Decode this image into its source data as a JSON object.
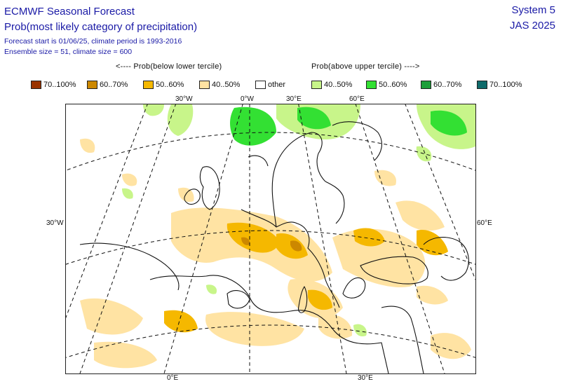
{
  "header": {
    "title": "ECMWF Seasonal Forecast",
    "subtitle": "Prob(most likely category of precipitation)",
    "meta_line1": "Forecast start is 01/06/25, climate period is 1993-2016",
    "meta_line2": "Ensemble size = 51, climate size = 600",
    "system": "System 5",
    "period": "JAS 2025"
  },
  "legend": {
    "below_label": "<---- Prob(below lower tercile)",
    "above_label": "Prob(above upper tercile) ---->",
    "items": [
      {
        "label": "70..100%",
        "color": "#993300"
      },
      {
        "label": "60..70%",
        "color": "#cc8800"
      },
      {
        "label": "50..60%",
        "color": "#f5b800"
      },
      {
        "label": "40..50%",
        "color": "#ffe3a3"
      },
      {
        "label": "other",
        "color": "#ffffff"
      },
      {
        "label": "40..50%",
        "color": "#c8f58a"
      },
      {
        "label": "50..60%",
        "color": "#33e033"
      },
      {
        "label": "60..70%",
        "color": "#1e9e3a"
      },
      {
        "label": "70..100%",
        "color": "#0f6b6b"
      }
    ]
  },
  "axes": {
    "top": [
      "30°W",
      "0°W",
      "30°E",
      "60°E"
    ],
    "left": "30°W",
    "right": "60°E",
    "bottom": [
      "0°E",
      "30°E"
    ]
  }
}
